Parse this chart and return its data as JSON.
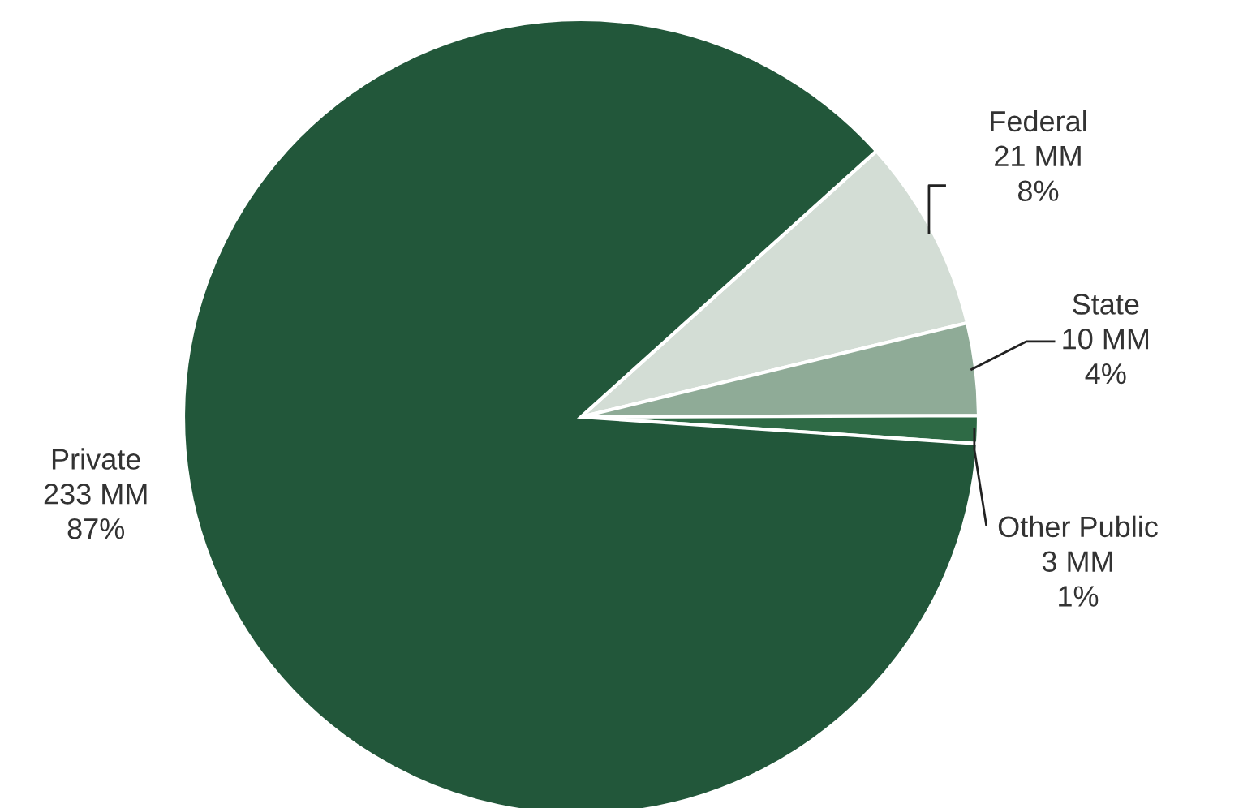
{
  "chart_data": {
    "type": "pie",
    "categories": [
      "Federal",
      "State",
      "Other Public",
      "Private"
    ],
    "values": [
      21,
      10,
      3,
      233
    ],
    "value_labels": [
      "21 MM\n8%",
      "10 MM\n4%",
      "3 MM\n1%",
      "233 MM\n87%"
    ],
    "colors": [
      "#d3ddd5",
      "#8fab97",
      "#2e6a45",
      "#22573a"
    ]
  }
}
